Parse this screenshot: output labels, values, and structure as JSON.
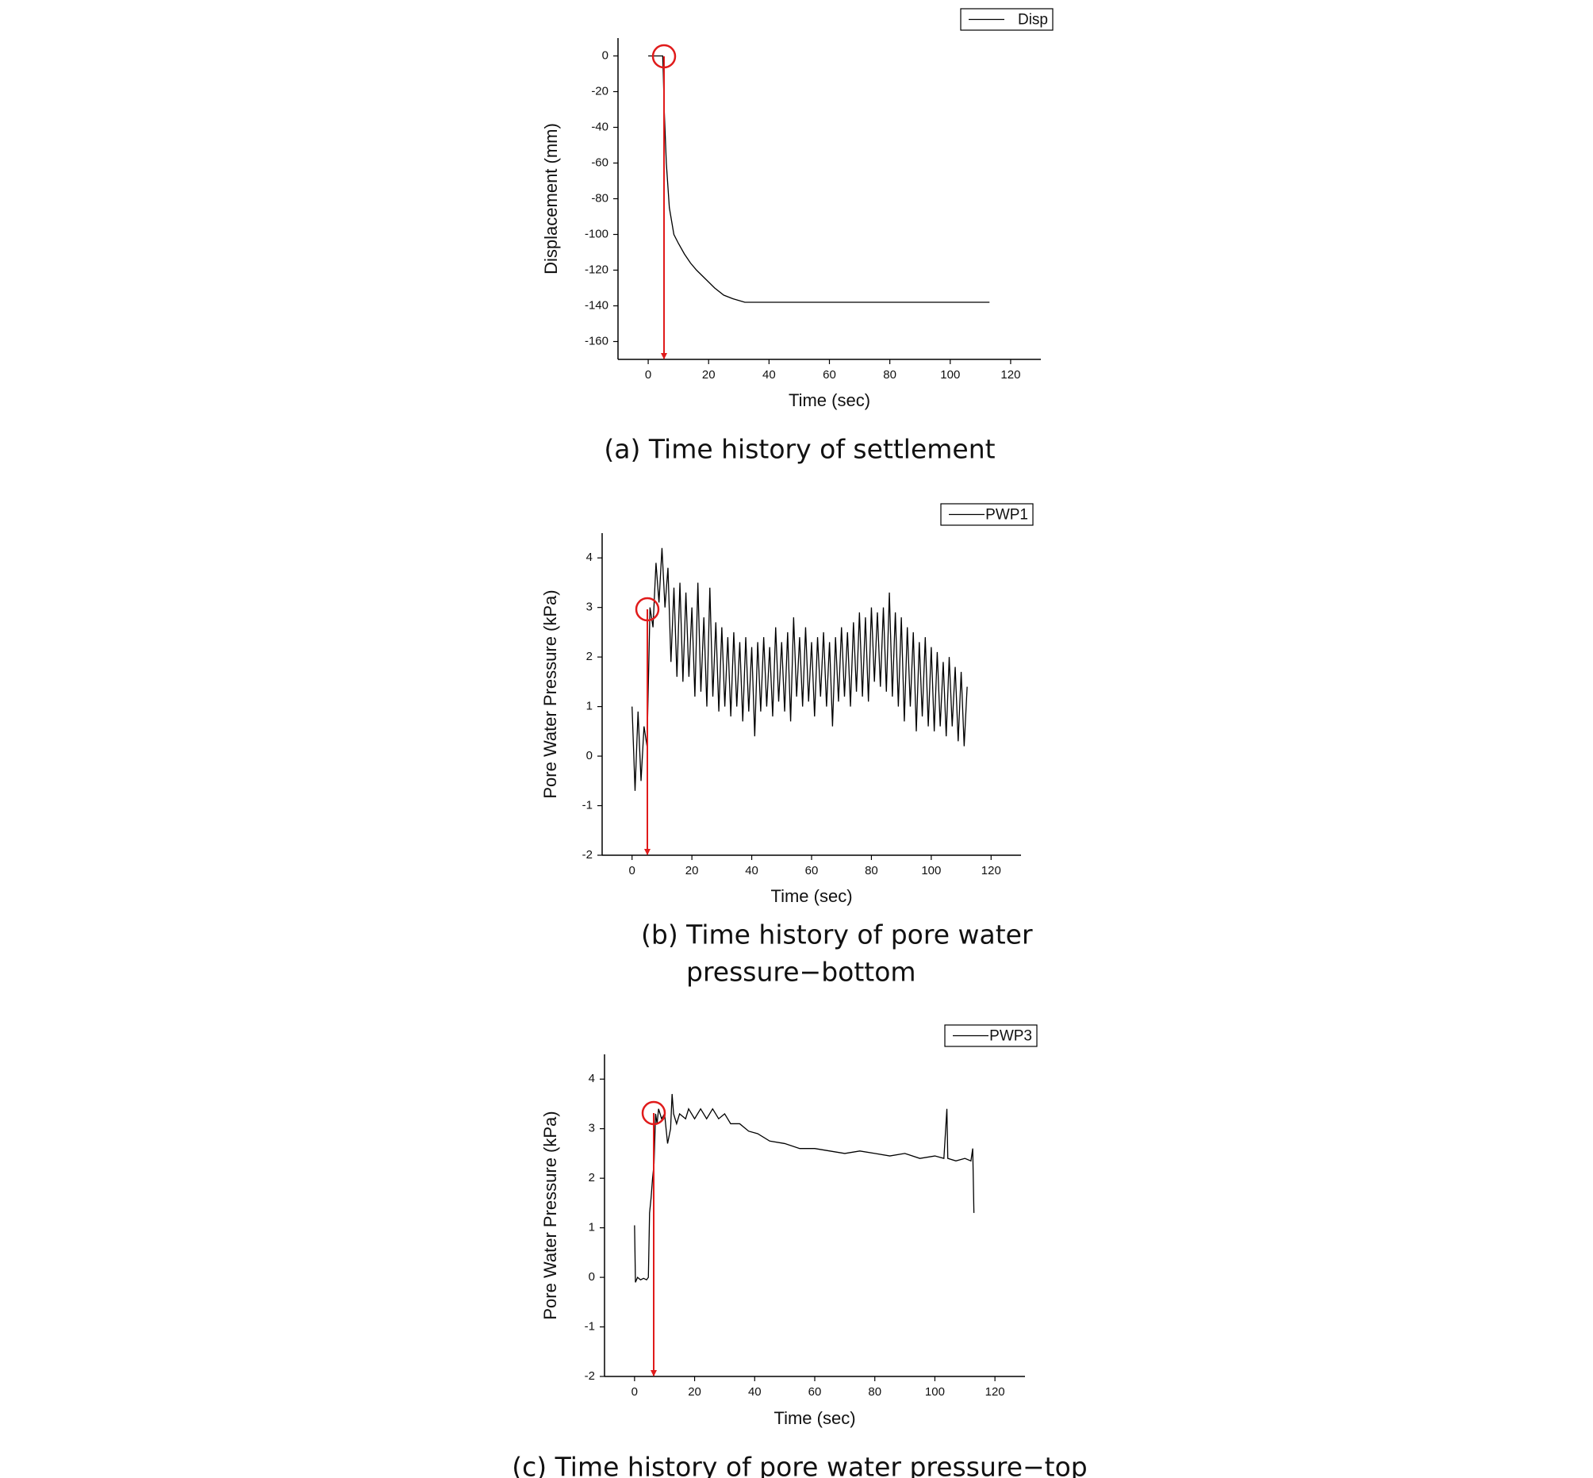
{
  "chart_data": [
    {
      "type": "line",
      "caption": [
        "(a) Time history of settlement"
      ],
      "xlabel": "Time (sec)",
      "ylabel": "Displacement (mm)",
      "x": [
        0,
        4.8,
        5.0,
        5.3,
        6,
        7,
        8.5,
        10,
        12,
        14,
        16,
        19,
        22,
        25,
        28,
        32,
        50,
        80,
        113
      ],
      "series": [
        {
          "name": "Disp",
          "color": "#000000",
          "values": [
            0,
            0,
            -10,
            -30,
            -60,
            -85,
            -100,
            -105,
            -111,
            -116,
            -120,
            -125,
            -130,
            -134,
            -136,
            -138,
            -138,
            -138,
            -138
          ]
        }
      ],
      "xlim": [
        -10,
        130
      ],
      "xticks": [
        0,
        20,
        40,
        60,
        80,
        100,
        120
      ],
      "ylim": [
        -170,
        10
      ],
      "yticks": [
        0,
        -20,
        -40,
        -60,
        -80,
        -100,
        -120,
        -140,
        -160
      ],
      "legend": "top-right"
    },
    {
      "type": "line",
      "caption": [
        "(b) Time history of pore water",
        "pressure−bottom"
      ],
      "xlabel": "Time (sec)",
      "ylabel": "Pore Water Pressure (kPa)",
      "x": [
        0,
        1,
        2,
        3,
        4,
        5,
        6,
        7,
        8,
        9,
        10,
        11,
        12,
        13,
        14,
        15,
        16,
        17,
        18,
        19,
        20,
        21,
        22,
        23,
        24,
        25,
        26,
        27,
        28,
        29,
        30,
        31,
        32,
        33,
        34,
        35,
        36,
        37,
        38,
        39,
        40,
        41,
        42,
        43,
        44,
        45,
        46,
        47,
        48,
        49,
        50,
        51,
        52,
        53,
        54,
        55,
        56,
        57,
        58,
        59,
        60,
        61,
        62,
        63,
        64,
        65,
        66,
        67,
        68,
        69,
        70,
        71,
        72,
        73,
        74,
        75,
        76,
        77,
        78,
        79,
        80,
        81,
        82,
        83,
        84,
        85,
        86,
        87,
        88,
        89,
        90,
        91,
        92,
        93,
        94,
        95,
        96,
        97,
        98,
        99,
        100,
        101,
        102,
        103,
        104,
        105,
        106,
        107,
        108,
        109,
        110,
        111,
        112
      ],
      "series": [
        {
          "name": "PWP1",
          "color": "#000000",
          "values": [
            1.0,
            -0.7,
            0.9,
            -0.5,
            0.6,
            0.2,
            3.0,
            2.6,
            3.9,
            3.1,
            4.2,
            3.0,
            3.8,
            1.9,
            3.4,
            1.6,
            3.5,
            1.5,
            3.3,
            1.6,
            3.0,
            1.2,
            3.5,
            1.3,
            2.8,
            1.0,
            3.4,
            1.2,
            2.7,
            0.9,
            2.6,
            1.0,
            2.4,
            0.8,
            2.5,
            1.0,
            2.3,
            0.7,
            2.4,
            0.9,
            2.2,
            0.4,
            2.3,
            0.9,
            2.4,
            1.0,
            2.2,
            0.8,
            2.6,
            1.1,
            2.3,
            0.9,
            2.5,
            0.7,
            2.8,
            1.2,
            2.4,
            1.0,
            2.6,
            1.1,
            2.3,
            0.8,
            2.4,
            1.2,
            2.5,
            1.0,
            2.3,
            0.6,
            2.4,
            1.1,
            2.6,
            1.2,
            2.5,
            1.0,
            2.7,
            1.3,
            2.9,
            1.2,
            2.8,
            1.1,
            3.0,
            1.5,
            2.9,
            1.4,
            3.0,
            1.3,
            3.3,
            1.2,
            2.9,
            1.0,
            2.8,
            0.7,
            2.6,
            1.0,
            2.5,
            0.5,
            2.3,
            0.8,
            2.4,
            0.6,
            2.2,
            0.5,
            2.1,
            0.6,
            1.9,
            0.4,
            2.0,
            0.6,
            1.8,
            0.3,
            1.7,
            0.2,
            1.4
          ]
        }
      ],
      "xlim": [
        -10,
        130
      ],
      "xticks": [
        0,
        20,
        40,
        60,
        80,
        100,
        120
      ],
      "ylim": [
        -2,
        4.5
      ],
      "yticks": [
        -2,
        -1,
        0,
        1,
        2,
        3,
        4
      ],
      "legend": "top-right"
    },
    {
      "type": "line",
      "caption": [
        "(c) Time history of pore water pressure−top"
      ],
      "xlabel": "Time (sec)",
      "ylabel": "Pore Water Pressure (kPa)",
      "x": [
        0,
        0.3,
        1,
        2,
        3,
        4,
        4.6,
        5,
        5.5,
        6,
        6.5,
        7,
        7.5,
        8,
        9,
        10,
        11,
        12,
        12.5,
        13,
        14,
        15,
        17,
        18,
        20,
        22,
        24,
        26,
        28,
        30,
        32,
        35,
        38,
        41,
        45,
        50,
        55,
        60,
        65,
        70,
        75,
        80,
        85,
        90,
        95,
        100,
        103,
        104,
        104.3,
        107,
        110,
        112,
        112.6,
        113
      ],
      "series": [
        {
          "name": "PWP3",
          "color": "#000000",
          "values": [
            1.05,
            -0.1,
            0,
            -0.05,
            -0.02,
            -0.05,
            0,
            1.3,
            1.6,
            2.0,
            2.3,
            3.3,
            3.1,
            3.4,
            3.2,
            3.3,
            2.7,
            3.0,
            3.7,
            3.3,
            3.1,
            3.3,
            3.2,
            3.4,
            3.2,
            3.4,
            3.2,
            3.4,
            3.2,
            3.3,
            3.1,
            3.1,
            2.95,
            2.9,
            2.75,
            2.7,
            2.6,
            2.6,
            2.55,
            2.5,
            2.55,
            2.5,
            2.45,
            2.5,
            2.4,
            2.45,
            2.4,
            3.4,
            2.4,
            2.35,
            2.4,
            2.35,
            2.6,
            1.3
          ]
        }
      ],
      "xlim": [
        -10,
        130
      ],
      "xticks": [
        0,
        20,
        40,
        60,
        80,
        100,
        120
      ],
      "ylim": [
        -2,
        4.5
      ],
      "yticks": [
        -2,
        -1,
        0,
        1,
        2,
        3,
        4
      ],
      "legend": "top-right"
    }
  ]
}
